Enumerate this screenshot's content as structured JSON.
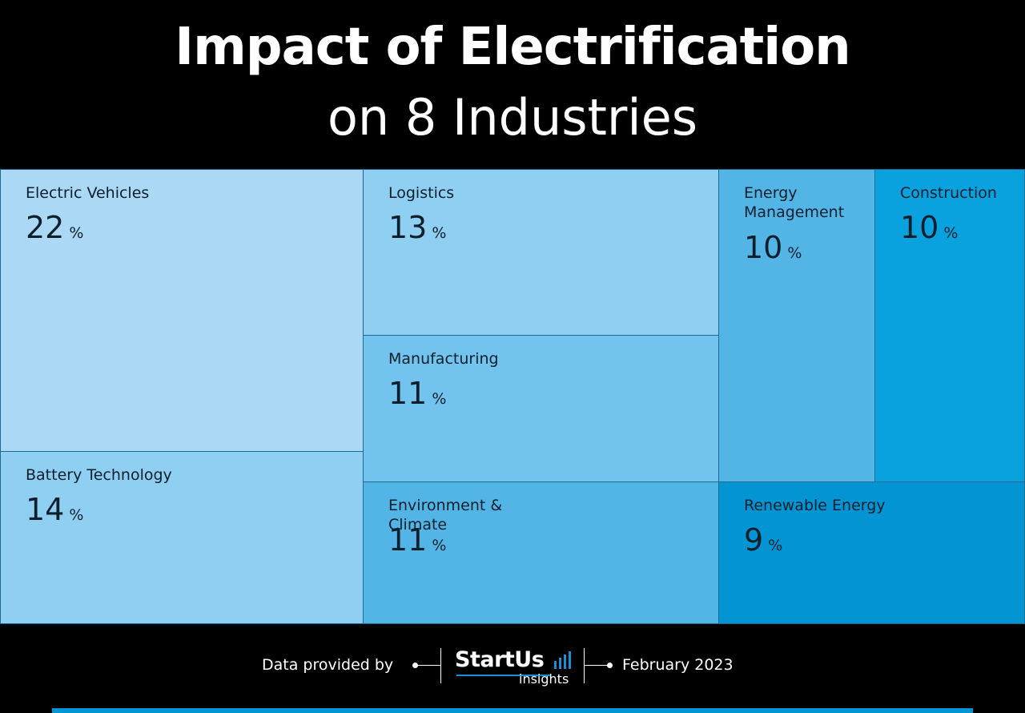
{
  "header": {
    "title_line1": "Impact of Electrification",
    "title_line2": "on 8 Industries"
  },
  "chart_data": {
    "type": "treemap",
    "title": "Impact of Electrification on 8 Industries",
    "unit": "%",
    "items": [
      {
        "name": "Electric Vehicles",
        "value": 22,
        "color": "#aad8f5"
      },
      {
        "name": "Battery Technology",
        "value": 14,
        "color": "#8ecff2"
      },
      {
        "name": "Logistics",
        "value": 13,
        "color": "#8ecff2"
      },
      {
        "name": "Manufacturing",
        "value": 11,
        "color": "#72c3ee"
      },
      {
        "name": "Environment & Climate",
        "value": 11,
        "color": "#53b5e6"
      },
      {
        "name": "Energy Management",
        "value": 10,
        "color": "#53b5e6"
      },
      {
        "name": "Construction",
        "value": 10,
        "color": "#0aa2de"
      },
      {
        "name": "Renewable Energy",
        "value": 9,
        "color": "#0394d3"
      }
    ]
  },
  "footer": {
    "source_label": "Data provided by",
    "logo_text": "StartUs",
    "logo_subtext": "insights",
    "logo_icon": "bar-chart-icon",
    "date": "February 2023",
    "accent_color": "#0096d6"
  }
}
